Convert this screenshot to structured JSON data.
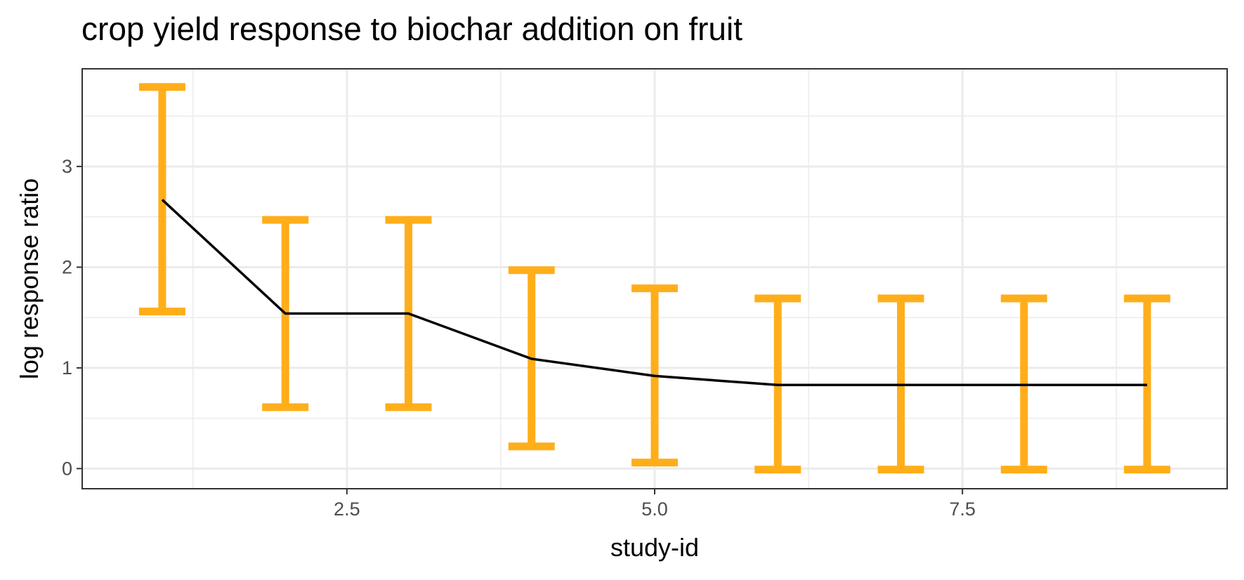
{
  "chart_data": {
    "type": "line",
    "title": "crop yield response to biochar addition on fruit",
    "xlabel": "study-id",
    "ylabel": "log response ratio",
    "xlim": [
      0.35,
      9.65
    ],
    "ylim": [
      -0.2,
      3.97
    ],
    "x_ticks": [
      2.5,
      5.0,
      7.5
    ],
    "x_tick_labels": [
      "2.5",
      "5.0",
      "7.5"
    ],
    "x_minor_ticks": [
      1.25,
      3.75,
      6.25,
      8.75
    ],
    "y_ticks": [
      0,
      1,
      2,
      3
    ],
    "y_tick_labels": [
      "0",
      "1",
      "2",
      "3"
    ],
    "y_minor_ticks": [
      0.5,
      1.5,
      2.5,
      3.5
    ],
    "grid": true,
    "series": [
      {
        "x": [
          1,
          2,
          3,
          4,
          5,
          6,
          7,
          8,
          9
        ],
        "y": [
          2.67,
          1.54,
          1.54,
          1.09,
          0.92,
          0.83,
          0.83,
          0.83,
          0.83
        ],
        "color": "#000000"
      }
    ],
    "error_bars": {
      "x": [
        1,
        2,
        3,
        4,
        5,
        6,
        7,
        8,
        9
      ],
      "lower": [
        1.56,
        0.61,
        0.61,
        0.22,
        0.06,
        -0.01,
        -0.01,
        -0.01,
        -0.01
      ],
      "upper": [
        3.79,
        2.47,
        2.47,
        1.97,
        1.79,
        1.69,
        1.69,
        1.69,
        1.69
      ],
      "color": "#FFAE1A"
    }
  }
}
